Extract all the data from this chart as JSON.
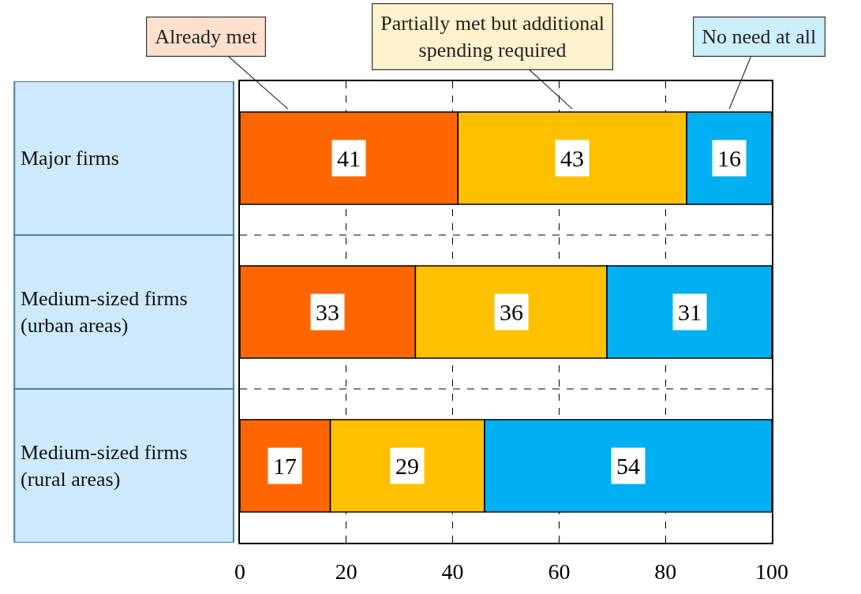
{
  "chart_data": {
    "type": "bar",
    "orientation": "horizontal",
    "stacked": true,
    "categories": [
      "Major firms",
      "Medium-sized firms (urban areas)",
      "Medium-sized firms (rural areas)"
    ],
    "series": [
      {
        "name": "Already met",
        "color": "#ff6600",
        "values": [
          41,
          33,
          17
        ]
      },
      {
        "name": "Partially met but additional spending required",
        "color": "#ffc000",
        "values": [
          43,
          36,
          29
        ]
      },
      {
        "name": "No need at all",
        "color": "#00b0f0",
        "values": [
          16,
          31,
          54
        ]
      }
    ],
    "xlim": [
      0,
      100
    ],
    "xticks": [
      0,
      20,
      40,
      60,
      80,
      100
    ],
    "grid": "x",
    "legend": "top",
    "data_labels": true
  }
}
